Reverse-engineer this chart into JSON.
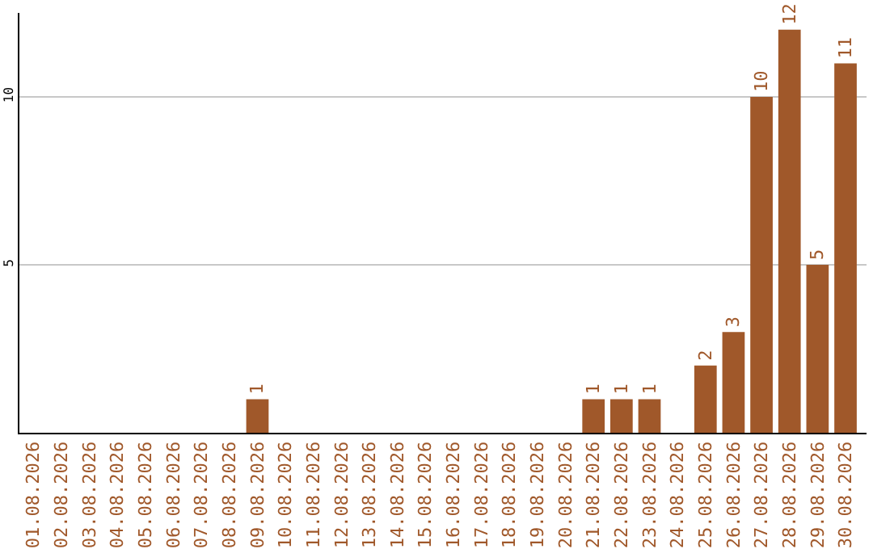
{
  "chart_data": {
    "type": "bar",
    "categories": [
      "01.08.2026",
      "02.08.2026",
      "03.08.2026",
      "04.08.2026",
      "05.08.2026",
      "06.08.2026",
      "07.08.2026",
      "08.08.2026",
      "09.08.2026",
      "10.08.2026",
      "11.08.2026",
      "12.08.2026",
      "13.08.2026",
      "14.08.2026",
      "15.08.2026",
      "16.08.2026",
      "17.08.2026",
      "18.08.2026",
      "19.08.2026",
      "20.08.2026",
      "21.08.2026",
      "22.08.2026",
      "23.08.2026",
      "24.08.2026",
      "25.08.2026",
      "26.08.2026",
      "27.08.2026",
      "28.08.2026",
      "29.08.2026",
      "30.08.2026"
    ],
    "values": [
      0,
      0,
      0,
      0,
      0,
      0,
      0,
      0,
      1,
      0,
      0,
      0,
      0,
      0,
      0,
      0,
      0,
      0,
      0,
      0,
      1,
      1,
      1,
      0,
      2,
      3,
      10,
      12,
      5,
      11
    ],
    "value_labels": [
      null,
      null,
      null,
      null,
      null,
      null,
      null,
      null,
      "1",
      null,
      null,
      null,
      null,
      null,
      null,
      null,
      null,
      null,
      null,
      null,
      "1",
      "1",
      "1",
      null,
      "2",
      "3",
      "10",
      "12",
      "5",
      "11"
    ],
    "color": "#a0582a",
    "ylim": [
      0,
      12.5
    ],
    "yticks": [
      5,
      10
    ],
    "grid": "y"
  }
}
